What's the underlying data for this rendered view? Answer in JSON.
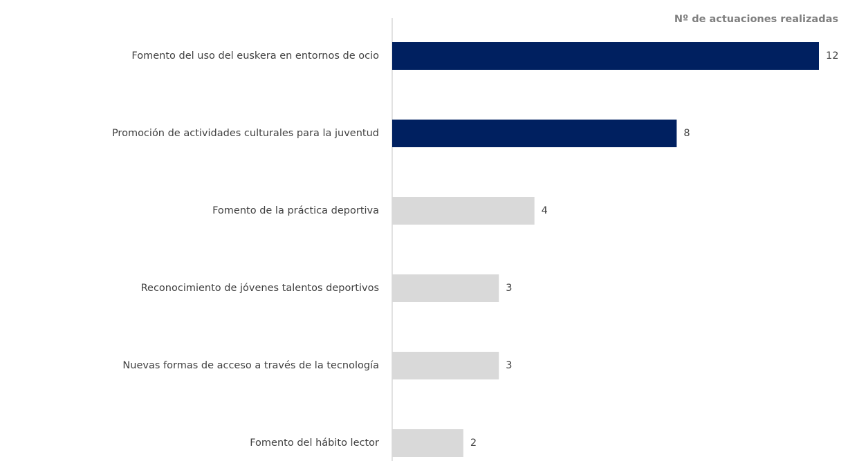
{
  "chart_data": {
    "type": "barh",
    "title": "Nº de actuaciones realizadas",
    "categories": [
      "Fomento del uso del euskera en entornos de ocio",
      "Promoción de actividades culturales para la juventud",
      "Fomento de la práctica deportiva",
      "Reconocimiento de jóvenes talentos deportivos",
      "Nuevas formas de acceso a través de la tecnología",
      "Fomento del hábito lector"
    ],
    "values": [
      12,
      8,
      4,
      3,
      3,
      2
    ],
    "colors": [
      "#002060",
      "#002060",
      "#d9d9d9",
      "#d9d9d9",
      "#d9d9d9",
      "#d9d9d9"
    ]
  }
}
